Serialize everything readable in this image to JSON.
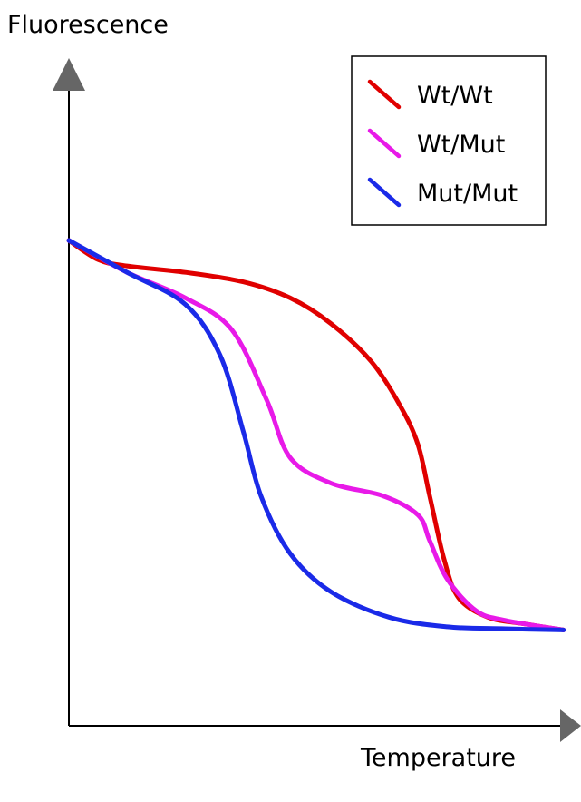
{
  "chart_data": {
    "type": "line",
    "title": "",
    "xlabel": "Temperature",
    "ylabel": "Fluorescence",
    "x_ticks": [],
    "y_ticks": [],
    "grid": false,
    "legend_position": "top-right",
    "xlim": [
      0,
      1
    ],
    "ylim": [
      0,
      1
    ],
    "series": [
      {
        "name": "Wt/Wt",
        "color": "#e00000",
        "points": [
          [
            0.0,
            0.76
          ],
          [
            0.05,
            0.73
          ],
          [
            0.1,
            0.72
          ],
          [
            0.2,
            0.71
          ],
          [
            0.3,
            0.695
          ],
          [
            0.38,
            0.67
          ],
          [
            0.45,
            0.63
          ],
          [
            0.52,
            0.57
          ],
          [
            0.57,
            0.5
          ],
          [
            0.6,
            0.44
          ],
          [
            0.62,
            0.36
          ],
          [
            0.645,
            0.26
          ],
          [
            0.67,
            0.2
          ],
          [
            0.72,
            0.17
          ],
          [
            0.78,
            0.16
          ],
          [
            0.85,
            0.15
          ]
        ]
      },
      {
        "name": "Wt/Mut",
        "color": "#e81ae8",
        "points": [
          [
            0.0,
            0.76
          ],
          [
            0.1,
            0.71
          ],
          [
            0.2,
            0.67
          ],
          [
            0.28,
            0.62
          ],
          [
            0.34,
            0.51
          ],
          [
            0.38,
            0.42
          ],
          [
            0.45,
            0.38
          ],
          [
            0.54,
            0.36
          ],
          [
            0.6,
            0.33
          ],
          [
            0.62,
            0.29
          ],
          [
            0.65,
            0.23
          ],
          [
            0.7,
            0.18
          ],
          [
            0.75,
            0.165
          ],
          [
            0.85,
            0.15
          ]
        ]
      },
      {
        "name": "Mut/Mut",
        "color": "#1a2ae8",
        "points": [
          [
            0.0,
            0.76
          ],
          [
            0.1,
            0.71
          ],
          [
            0.2,
            0.66
          ],
          [
            0.26,
            0.58
          ],
          [
            0.3,
            0.46
          ],
          [
            0.33,
            0.36
          ],
          [
            0.38,
            0.27
          ],
          [
            0.45,
            0.21
          ],
          [
            0.55,
            0.17
          ],
          [
            0.65,
            0.155
          ],
          [
            0.75,
            0.152
          ],
          [
            0.85,
            0.15
          ]
        ]
      }
    ]
  }
}
